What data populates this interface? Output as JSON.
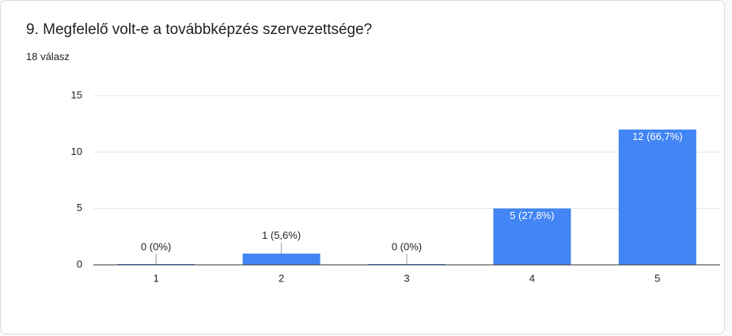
{
  "chart_data": {
    "type": "bar",
    "title": "9. Megfelelő volt-e a továbbképzés szervezettsége?",
    "subtitle": "18 válasz",
    "categories": [
      "1",
      "2",
      "3",
      "4",
      "5"
    ],
    "values": [
      0,
      1,
      0,
      5,
      12
    ],
    "value_labels": [
      "0 (0%)",
      "1 (5,6%)",
      "0 (0%)",
      "5 (27,8%)",
      "12 (66,7%)"
    ],
    "color": "#4285f4",
    "ylim": [
      0,
      15
    ],
    "yticks": [
      0,
      5,
      10,
      15
    ],
    "grid": true
  }
}
